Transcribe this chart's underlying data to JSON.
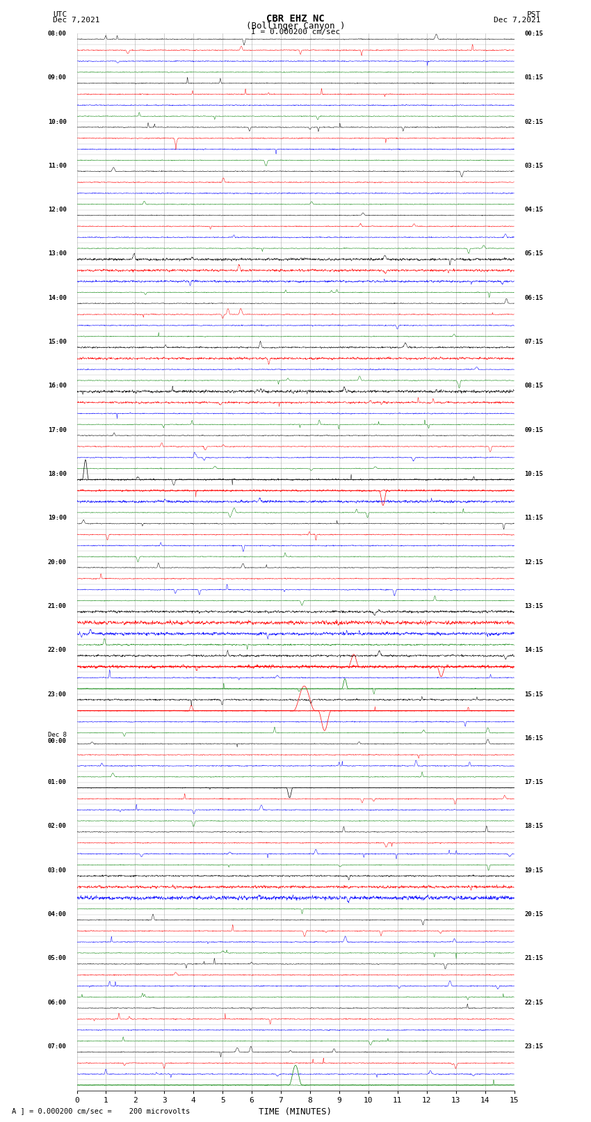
{
  "title_line1": "CBR EHZ NC",
  "title_line2": "(Bollinger Canyon )",
  "scale_text": "I = 0.000200 cm/sec",
  "left_label_line1": "UTC",
  "left_label_line2": "Dec 7,2021",
  "right_label_line1": "PST",
  "right_label_line2": "Dec 7,2021",
  "bottom_label": "A ] = 0.000200 cm/sec =    200 microvolts",
  "xlabel": "TIME (MINUTES)",
  "bg_color": "#ffffff",
  "grid_color": "#999999",
  "xmin": 0,
  "xmax": 15,
  "xticks": [
    0,
    1,
    2,
    3,
    4,
    5,
    6,
    7,
    8,
    9,
    10,
    11,
    12,
    13,
    14,
    15
  ],
  "n_rows": 96,
  "noise_scale": 0.06,
  "left_times": [
    "08:00",
    "09:00",
    "10:00",
    "11:00",
    "12:00",
    "13:00",
    "14:00",
    "15:00",
    "16:00",
    "17:00",
    "18:00",
    "19:00",
    "20:00",
    "21:00",
    "22:00",
    "23:00",
    "Dec 8\n00:00",
    "01:00",
    "02:00",
    "03:00",
    "04:00",
    "05:00",
    "06:00",
    "07:00"
  ],
  "right_times": [
    "00:15",
    "01:15",
    "02:15",
    "03:15",
    "04:15",
    "05:15",
    "06:15",
    "07:15",
    "08:15",
    "09:15",
    "10:15",
    "11:15",
    "12:15",
    "13:15",
    "14:15",
    "15:15",
    "16:15",
    "17:15",
    "18:15",
    "19:15",
    "20:15",
    "21:15",
    "22:15",
    "23:15"
  ]
}
